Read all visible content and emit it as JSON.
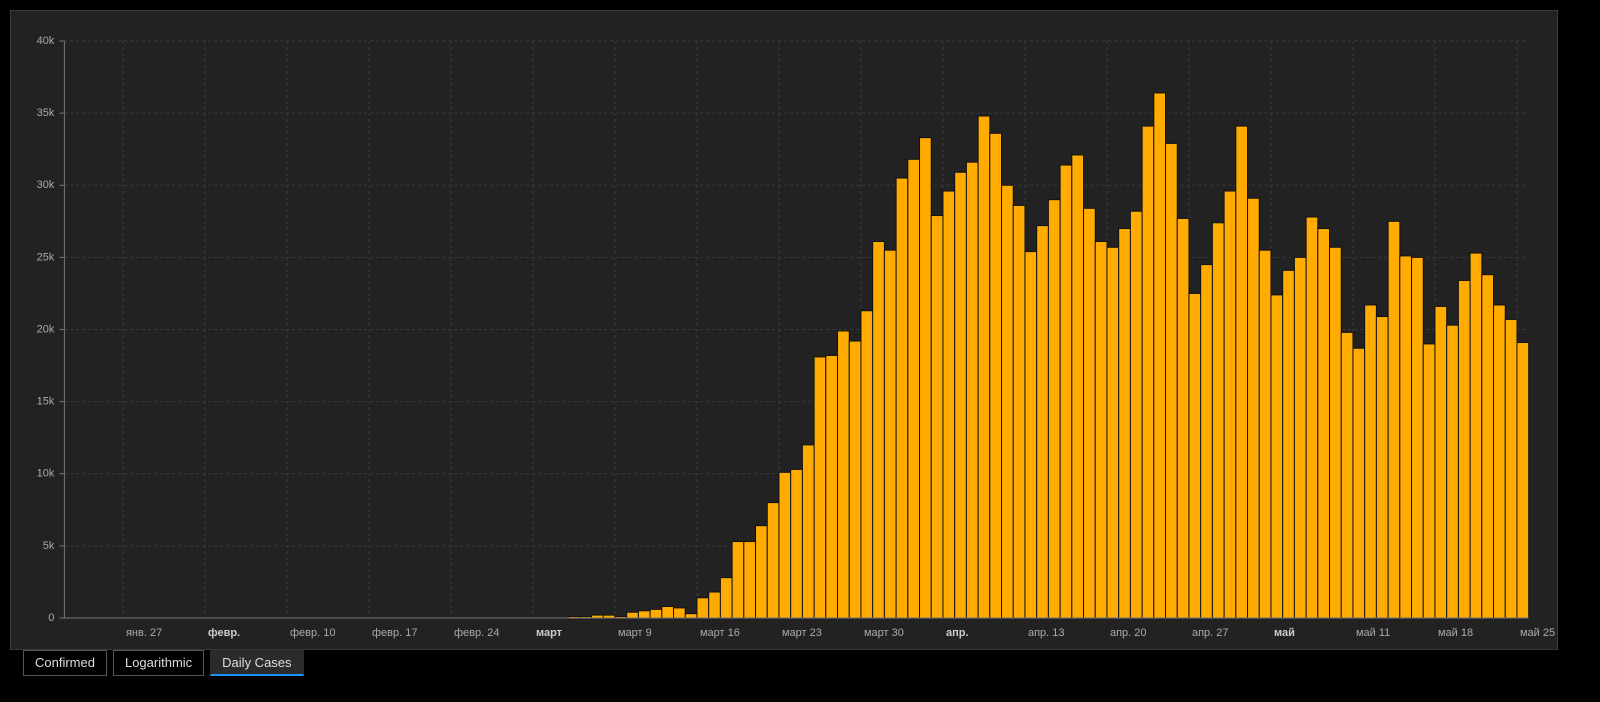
{
  "chart_data": {
    "type": "bar",
    "color": "#ffab00",
    "grid": true,
    "categories": [
      null,
      null,
      null,
      null,
      null,
      "янв. 27",
      null,
      null,
      null,
      null,
      null,
      null,
      "февр.",
      null,
      null,
      null,
      null,
      null,
      null,
      "февр. 10",
      null,
      null,
      null,
      null,
      null,
      null,
      "февр. 17",
      null,
      null,
      null,
      null,
      null,
      null,
      "февр. 24",
      null,
      null,
      null,
      null,
      null,
      null,
      "март",
      null,
      null,
      null,
      null,
      null,
      null,
      "март 9",
      null,
      null,
      null,
      null,
      null,
      null,
      "март 16",
      null,
      null,
      null,
      null,
      null,
      null,
      "март 23",
      null,
      null,
      null,
      null,
      null,
      null,
      "март 30",
      null,
      null,
      null,
      null,
      null,
      null,
      "апр.",
      null,
      null,
      null,
      null,
      null,
      null,
      "апр. 13",
      null,
      null,
      null,
      null,
      null,
      null,
      "апр. 20",
      null,
      null,
      null,
      null,
      null,
      null,
      "апр. 27",
      null,
      null,
      null,
      null,
      null,
      null,
      "май",
      null,
      null,
      null,
      null,
      null,
      null,
      "май 11",
      null,
      null,
      null,
      null,
      null,
      null,
      "май 18",
      null,
      null,
      null,
      null,
      null,
      null,
      "май 25"
    ],
    "values": [
      0,
      0,
      0,
      0,
      0,
      0,
      0,
      0,
      0,
      0,
      0,
      0,
      0,
      0,
      0,
      0,
      0,
      0,
      0,
      0,
      0,
      0,
      0,
      0,
      0,
      0,
      0,
      0,
      0,
      0,
      0,
      0,
      0,
      0,
      0,
      0,
      0,
      0,
      0,
      0,
      0,
      0,
      0,
      100,
      100,
      200,
      200,
      100,
      400,
      500,
      600,
      800,
      700,
      300,
      1400,
      1800,
      2800,
      5300,
      5300,
      6400,
      8000,
      10100,
      10300,
      12000,
      18100,
      18200,
      19900,
      19200,
      21300,
      26100,
      25500,
      30500,
      31800,
      33300,
      27900,
      29600,
      30900,
      31600,
      34800,
      33600,
      30000,
      28600,
      25400,
      27200,
      29000,
      31400,
      32100,
      28400,
      26100,
      25700,
      27000,
      28200,
      34100,
      36400,
      32900,
      27700,
      22500,
      24500,
      27400,
      29600,
      34100,
      29100,
      25500,
      22400,
      24100,
      25000,
      27800,
      27000,
      25700,
      19800,
      18700,
      21700,
      20900,
      27500,
      25100,
      25000,
      19000,
      21600,
      20300,
      23400,
      25300,
      23800,
      21700,
      20700,
      19100
    ],
    "ylim": [
      0,
      40000
    ],
    "yticks": [
      0,
      {
        "value": 5000,
        "label": "5k"
      },
      {
        "value": 10000,
        "label": "10k"
      },
      {
        "value": 15000,
        "label": "15k"
      },
      {
        "value": 20000,
        "label": "20k"
      },
      {
        "value": 25000,
        "label": "25k"
      },
      {
        "value": 30000,
        "label": "30k"
      },
      {
        "value": 35000,
        "label": "35k"
      },
      {
        "value": 40000,
        "label": "40k"
      }
    ]
  },
  "tabs": {
    "items": [
      "Confirmed",
      "Logarithmic",
      "Daily Cases"
    ],
    "active": 2
  }
}
